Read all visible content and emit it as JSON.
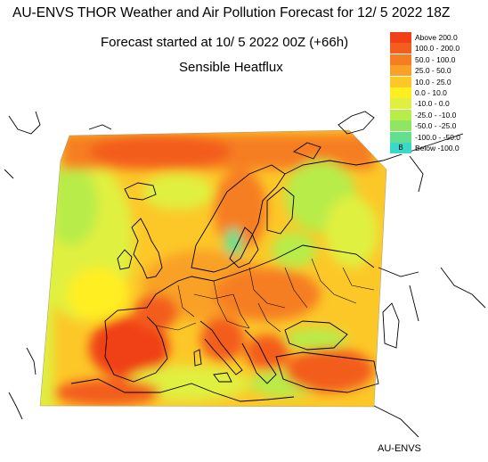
{
  "titles": {
    "main": "AU-ENVS THOR Weather and Air Pollution Forecast for 12/ 5 2022  18Z",
    "started": "Forecast started at 10/ 5 2022  00Z (+66h)",
    "field": "Sensible Heatflux"
  },
  "legend": [
    {
      "label": "Above    200.0",
      "color": "#f04018"
    },
    {
      "label": "100.0  -  200.0",
      "color": "#f35d1e"
    },
    {
      "label": "50.0  -  100.0",
      "color": "#f67e22"
    },
    {
      "label": "25.0  -    50.0",
      "color": "#f9a127"
    },
    {
      "label": "10.0  -    25.0",
      "color": "#fcc828"
    },
    {
      "label": "0.0  -    10.0",
      "color": "#ffee20"
    },
    {
      "label": "-10.0  -      0.0",
      "color": "#e0f040"
    },
    {
      "label": "-25.0  -  -10.0",
      "color": "#b8ec48"
    },
    {
      "label": "-50.0  -  -25.0",
      "color": "#8fe660"
    },
    {
      "label": "-100.0  -  -50.0",
      "color": "#62e090"
    },
    {
      "label": "Below  -100.0",
      "color": "#3ad8c8",
      "mark": "B"
    }
  ],
  "footer": "AU-ENVS"
}
